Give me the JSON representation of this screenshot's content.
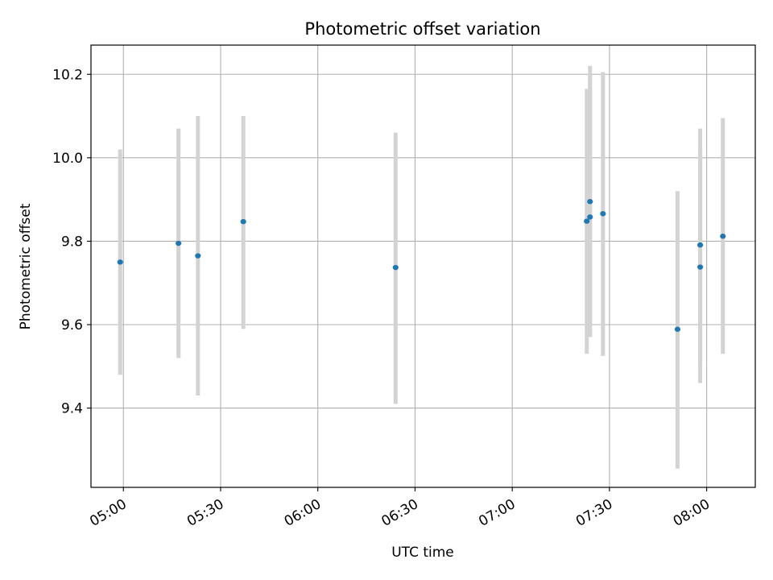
{
  "chart_data": {
    "type": "scatter",
    "title": "Photometric offset variation",
    "xlabel": "UTC time",
    "ylabel": "Photometric offset",
    "x_tick_labels": [
      "05:00",
      "05:30",
      "06:00",
      "06:30",
      "07:00",
      "07:30",
      "08:00"
    ],
    "y_tick_labels": [
      "9.4",
      "9.6",
      "9.8",
      "10.0",
      "10.2"
    ],
    "y_ticks": [
      9.4,
      9.6,
      9.8,
      10.0,
      10.2
    ],
    "x_ticks": [
      "05:00",
      "05:30",
      "06:00",
      "06:30",
      "07:00",
      "07:30",
      "08:00"
    ],
    "xlim": [
      "04:50",
      "08:15"
    ],
    "ylim": [
      9.21,
      10.27
    ],
    "grid": true,
    "colors": {
      "point": "#1f77b4",
      "errorbar": "#d3d3d3",
      "grid": "#b0b0b0"
    },
    "points": [
      {
        "time": "04:59",
        "y": 9.75,
        "err_low": 9.48,
        "err_high": 10.02
      },
      {
        "time": "05:17",
        "y": 9.795,
        "err_low": 9.52,
        "err_high": 10.07
      },
      {
        "time": "05:23",
        "y": 9.765,
        "err_low": 9.43,
        "err_high": 10.1
      },
      {
        "time": "05:37",
        "y": 9.847,
        "err_low": 9.59,
        "err_high": 10.1
      },
      {
        "time": "06:24",
        "y": 9.737,
        "err_low": 9.41,
        "err_high": 10.06
      },
      {
        "time": "07:23",
        "y": 9.848,
        "err_low": 9.53,
        "err_high": 10.165
      },
      {
        "time": "07:24",
        "y": 9.858,
        "err_low": 9.57,
        "err_high": 10.2
      },
      {
        "time": "07:24",
        "y": 9.895,
        "err_low": 9.57,
        "err_high": 10.22
      },
      {
        "time": "07:28",
        "y": 9.866,
        "err_low": 9.525,
        "err_high": 10.205
      },
      {
        "time": "07:51",
        "y": 9.589,
        "err_low": 9.255,
        "err_high": 9.92
      },
      {
        "time": "07:58",
        "y": 9.791,
        "err_low": 9.51,
        "err_high": 10.07
      },
      {
        "time": "07:58",
        "y": 9.738,
        "err_low": 9.46,
        "err_high": 10.02
      },
      {
        "time": "08:05",
        "y": 9.812,
        "err_low": 9.53,
        "err_high": 10.095
      }
    ]
  }
}
